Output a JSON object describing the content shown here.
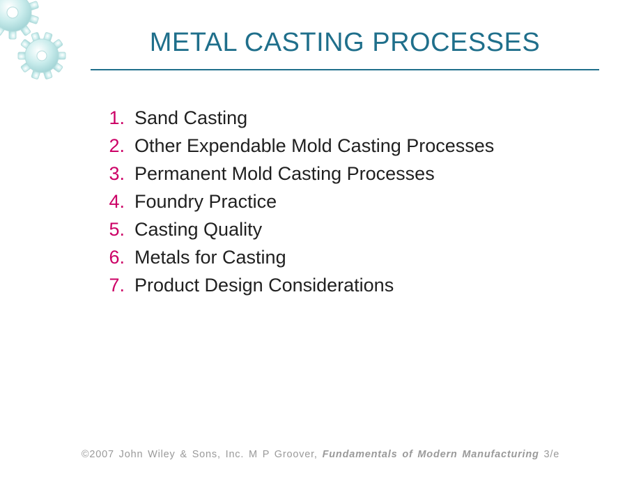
{
  "colors": {
    "title": "#1f6f8b",
    "title_rule": "#1f6f8b",
    "number": "#cc0066",
    "item_text": "#202020",
    "footer_text": "#9a9a9a",
    "gear_fill": "#bfe5e5",
    "gear_stroke": "#8fbfc4",
    "gear_highlight": "#ffffff",
    "background": "#ffffff"
  },
  "title": "METAL CASTING PROCESSES",
  "items": [
    "Sand Casting",
    "Other Expendable Mold Casting Processes",
    "Permanent Mold Casting Processes",
    "Foundry Practice",
    "Casting Quality",
    "Metals for Casting",
    "Product Design Considerations"
  ],
  "footer": {
    "copyright": "©2007  John  Wiley  &  Sons,  Inc.   M  P Groover,  ",
    "book_title": "Fundamentals  of Modern  Manufacturing",
    "edition": "  3/e"
  },
  "typography": {
    "title_fontsize": 38,
    "item_fontsize": 27,
    "footer_fontsize": 14.5
  }
}
